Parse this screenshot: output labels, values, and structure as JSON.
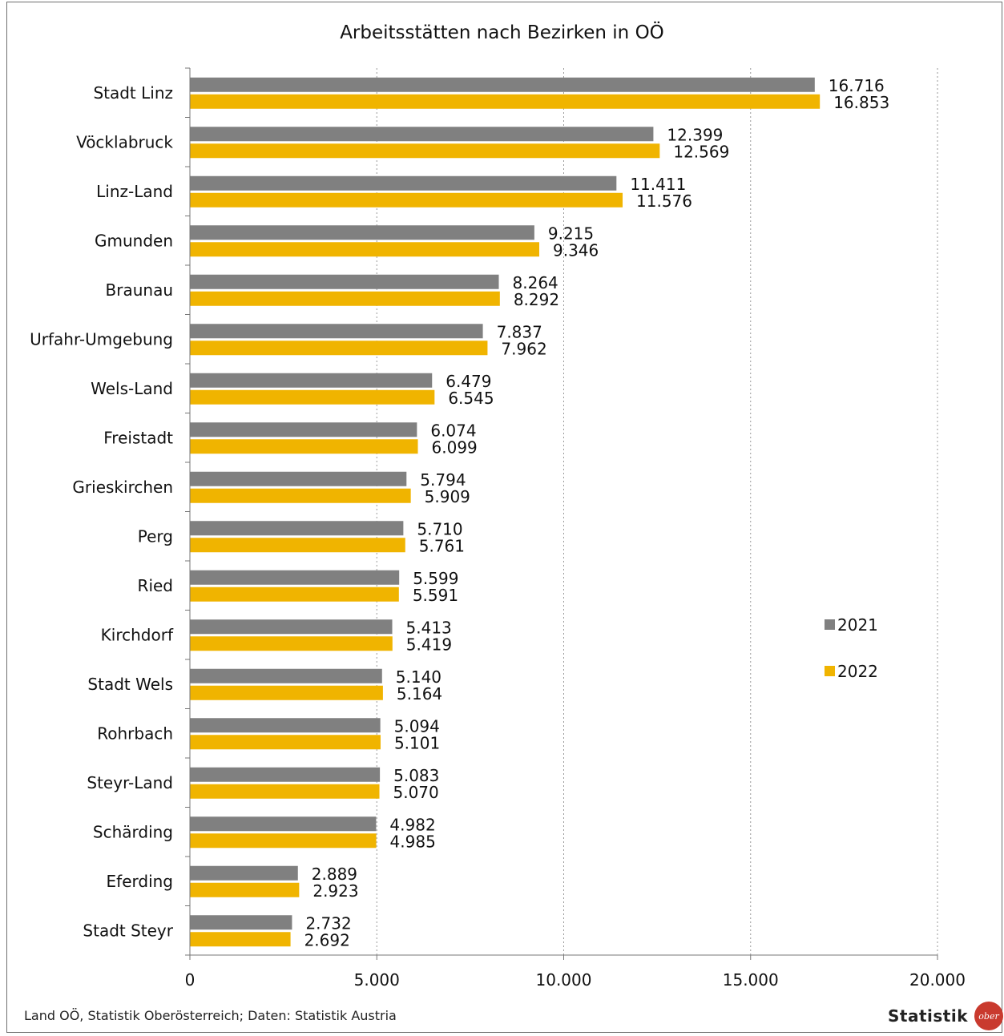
{
  "chart_data": {
    "type": "bar",
    "orientation": "horizontal",
    "title": "Arbeitsstätten nach Bezirken in OÖ",
    "categories": [
      "Stadt Linz",
      "Vöcklabruck",
      "Linz-Land",
      "Gmunden",
      "Braunau",
      "Urfahr-Umgebung",
      "Wels-Land",
      "Freistadt",
      "Grieskirchen",
      "Perg",
      "Ried",
      "Kirchdorf",
      "Stadt Wels",
      "Rohrbach",
      "Steyr-Land",
      "Schärding",
      "Eferding",
      "Stadt Steyr"
    ],
    "series": [
      {
        "name": "2021",
        "color": "#808080",
        "values": [
          16716,
          12399,
          11411,
          9215,
          8264,
          7837,
          6479,
          6074,
          5794,
          5710,
          5599,
          5413,
          5140,
          5094,
          5083,
          4982,
          2889,
          2732
        ],
        "labels": [
          "16.716",
          "12.399",
          "11.411",
          "9.215",
          "8.264",
          "7.837",
          "6.479",
          "6.074",
          "5.794",
          "5.710",
          "5.599",
          "5.413",
          "5.140",
          "5.094",
          "5.083",
          "4.982",
          "2.889",
          "2.732"
        ]
      },
      {
        "name": "2022",
        "color": "#f0b400",
        "values": [
          16853,
          12569,
          11576,
          9346,
          8292,
          7962,
          6545,
          6099,
          5909,
          5761,
          5591,
          5419,
          5164,
          5101,
          5070,
          4985,
          2923,
          2692
        ],
        "labels": [
          "16.853",
          "12.569",
          "11.576",
          "9.346",
          "8.292",
          "7.962",
          "6.545",
          "6.099",
          "5.909",
          "5.761",
          "5.591",
          "5.419",
          "5.164",
          "5.101",
          "5.070",
          "4.985",
          "2.923",
          "2.692"
        ]
      }
    ],
    "xlim": [
      0,
      20000
    ],
    "xticks": [
      0,
      5000,
      10000,
      15000,
      20000
    ],
    "xtick_labels": [
      "0",
      "5.000",
      "10.000",
      "15.000",
      "20.000"
    ],
    "grid": "vertical-dotted",
    "legend_position": "right"
  },
  "footer": {
    "source": "Land OÖ, Statistik Oberösterreich; Daten: Statistik Austria",
    "brand": "Statistik",
    "logo_text": "ober"
  }
}
